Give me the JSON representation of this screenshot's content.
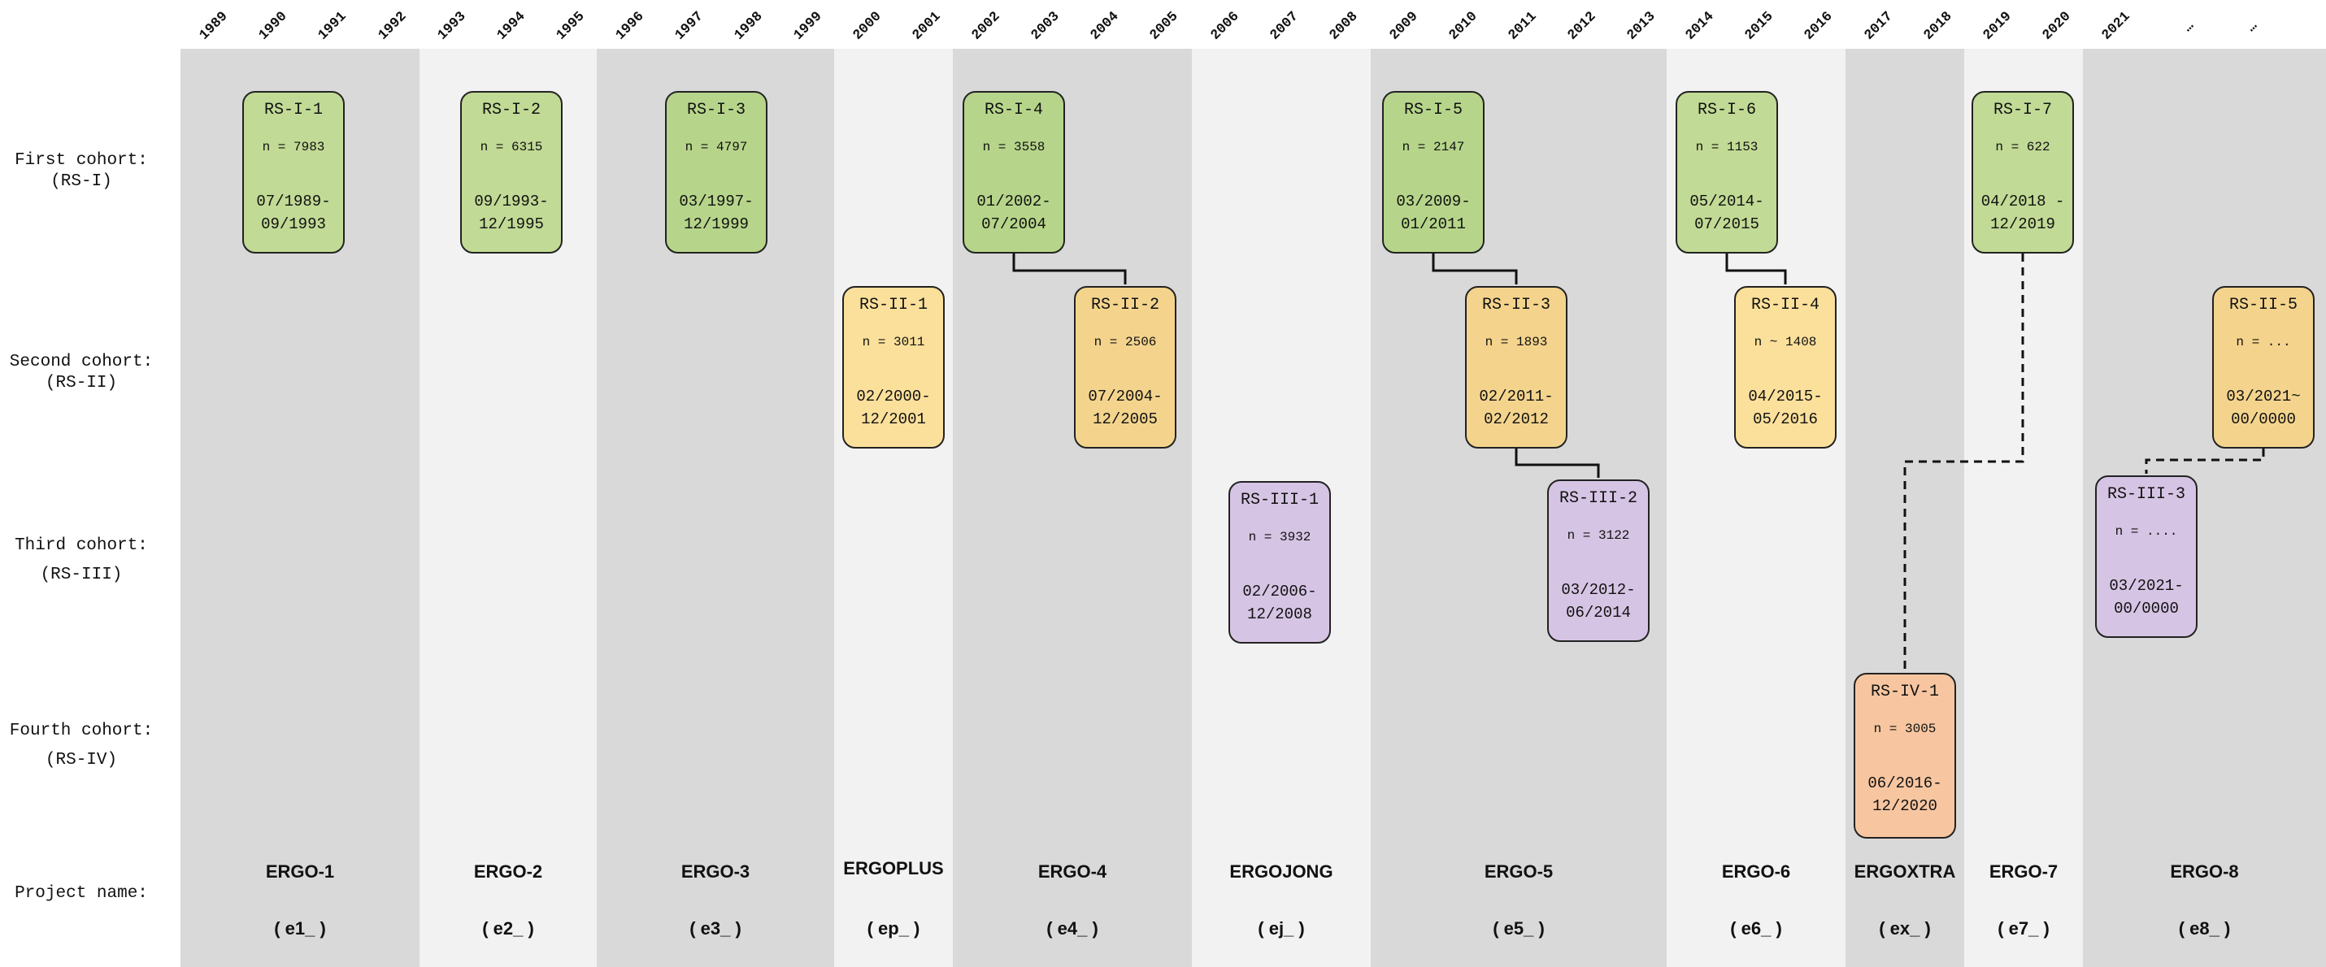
{
  "years": [
    "1989",
    "1990",
    "1991",
    "1992",
    "1993",
    "1994",
    "1995",
    "1996",
    "1997",
    "1998",
    "1999",
    "2000",
    "2001",
    "2002",
    "2003",
    "2004",
    "2005",
    "2006",
    "2007",
    "2008",
    "2009",
    "2010",
    "2011",
    "2012",
    "2013",
    "2014",
    "2015",
    "2016",
    "2017",
    "2018",
    "2019",
    "2020",
    "2021",
    "…",
    "…"
  ],
  "row_labels": {
    "first": {
      "line1": "First cohort:",
      "line2": "(RS-I)"
    },
    "second": {
      "line1": "Second cohort:",
      "line2": "(RS-II)"
    },
    "third": {
      "line1": "Third cohort:",
      "line2": "(RS-III)"
    },
    "fourth": {
      "line1": "Fourth cohort:",
      "line2": "(RS-IV)"
    },
    "project": {
      "line1": "Project name:"
    }
  },
  "projects": [
    {
      "name": "ERGO-1",
      "code": "( e1_ )"
    },
    {
      "name": "ERGO-2",
      "code": "( e2_ )"
    },
    {
      "name": "ERGO-3",
      "code": "( e3_ )"
    },
    {
      "name": "ERGOPLUS",
      "code": "( ep_ )"
    },
    {
      "name": "ERGO-4",
      "code": "( e4_ )"
    },
    {
      "name": "ERGOJONG",
      "code": "( ej_ )"
    },
    {
      "name": "ERGO-5",
      "code": "( e5_ )"
    },
    {
      "name": "ERGO-6",
      "code": "( e6_ )"
    },
    {
      "name": "ERGOXTRA",
      "code": "( ex_ )"
    },
    {
      "name": "ERGO-7",
      "code": "( e7_ )"
    },
    {
      "name": "ERGO-8",
      "code": "( e8_ )"
    }
  ],
  "visits": {
    "rs_i_1": {
      "title": "RS-I-1",
      "n": "n = 7983",
      "d1": "07/1989-",
      "d2": "09/1993"
    },
    "rs_i_2": {
      "title": "RS-I-2",
      "n": "n = 6315",
      "d1": "09/1993-",
      "d2": "12/1995"
    },
    "rs_i_3": {
      "title": "RS-I-3",
      "n": "n = 4797",
      "d1": "03/1997-",
      "d2": "12/1999"
    },
    "rs_i_4": {
      "title": "RS-I-4",
      "n": "n = 3558",
      "d1": "01/2002-",
      "d2": "07/2004"
    },
    "rs_i_5": {
      "title": "RS-I-5",
      "n": "n = 2147",
      "d1": "03/2009-",
      "d2": "01/2011"
    },
    "rs_i_6": {
      "title": "RS-I-6",
      "n": "n = 1153",
      "d1": "05/2014-",
      "d2": "07/2015"
    },
    "rs_i_7": {
      "title": "RS-I-7",
      "n": "n = 622",
      "d1": "04/2018 -",
      "d2": "12/2019"
    },
    "rs_ii_1": {
      "title": "RS-II-1",
      "n": "n = 3011",
      "d1": "02/2000-",
      "d2": "12/2001"
    },
    "rs_ii_2": {
      "title": "RS-II-2",
      "n": "n = 2506",
      "d1": "07/2004-",
      "d2": "12/2005"
    },
    "rs_ii_3": {
      "title": "RS-II-3",
      "n": "n = 1893",
      "d1": "02/2011-",
      "d2": "02/2012"
    },
    "rs_ii_4": {
      "title": "RS-II-4",
      "n": "n ~ 1408",
      "d1": "04/2015-",
      "d2": "05/2016"
    },
    "rs_ii_5": {
      "title": "RS-II-5",
      "n": "n = ...",
      "d1": "03/2021~",
      "d2": "00/0000"
    },
    "rs_iii_1": {
      "title": "RS-III-1",
      "n": "n = 3932",
      "d1": "02/2006-",
      "d2": "12/2008"
    },
    "rs_iii_2": {
      "title": "RS-III-2",
      "n": "n = 3122",
      "d1": "03/2012-",
      "d2": "06/2014"
    },
    "rs_iii_3": {
      "title": "RS-III-3",
      "n": "n = ....",
      "d1": "03/2021-",
      "d2": "00/0000"
    },
    "rs_iv_1": {
      "title": "RS-IV-1",
      "n": "n = 3005",
      "d1": "06/2016-",
      "d2": "12/2020"
    }
  },
  "colors": {
    "band_dark": "#d9d9d9",
    "band_light": "#f2f2f2",
    "rs_i": "#c1da95",
    "rs_ii": "#fbe09b",
    "rs_iii": "#d6c4e4",
    "rs_iv": "#f7c6a0"
  }
}
